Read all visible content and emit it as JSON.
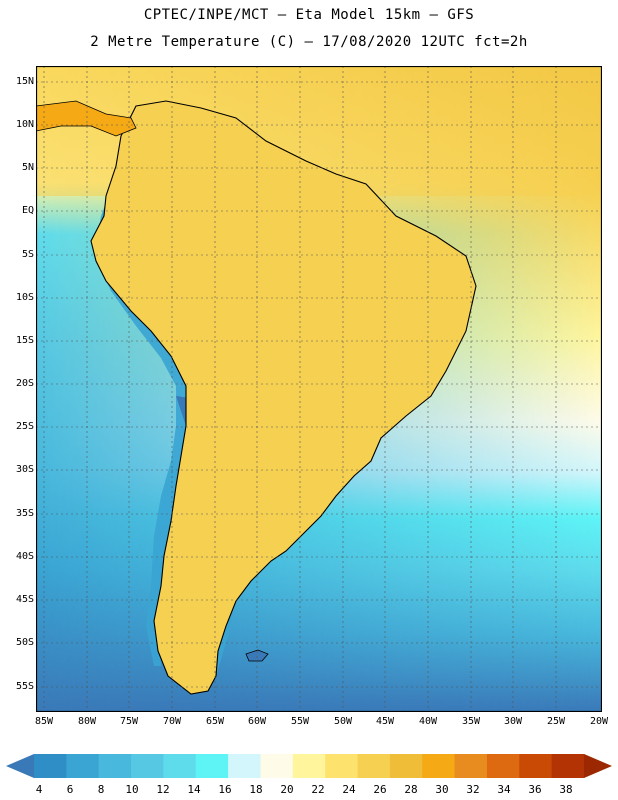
{
  "header": {
    "line1": "CPTEC/INPE/MCT –  Eta Model 15km – GFS",
    "line2": "2 Metre Temperature (C) – 17/08/2020 12UTC fct=2h"
  },
  "map": {
    "lat_labels": [
      "15N",
      "10N",
      "5N",
      "EQ",
      "5S",
      "10S",
      "15S",
      "20S",
      "25S",
      "30S",
      "35S",
      "40S",
      "45S",
      "50S",
      "55S"
    ],
    "lon_labels": [
      "85W",
      "80W",
      "75W",
      "70W",
      "65W",
      "60W",
      "55W",
      "50W",
      "45W",
      "40W",
      "35W",
      "30W",
      "25W",
      "20W"
    ]
  },
  "legend": {
    "levels": [
      "4",
      "6",
      "8",
      "10",
      "12",
      "14",
      "16",
      "18",
      "20",
      "22",
      "24",
      "26",
      "28",
      "30",
      "32",
      "34",
      "36",
      "38"
    ],
    "colors": [
      "#3a79b8",
      "#2f8ec5",
      "#3aa4d3",
      "#48b8dc",
      "#56c8e3",
      "#5fdcec",
      "#5ef4f6",
      "#d2f6fb",
      "#fffbe9",
      "#fff59d",
      "#fde36d",
      "#f6d051",
      "#efbd38",
      "#f4a915",
      "#e98c20",
      "#dd6a10",
      "#c94a05",
      "#b33304",
      "#9b2800"
    ]
  }
}
